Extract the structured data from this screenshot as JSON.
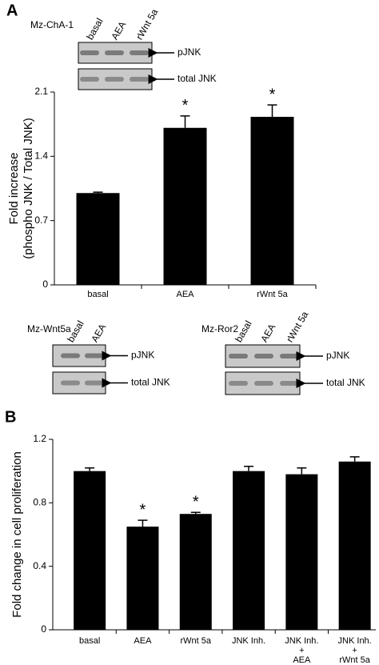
{
  "panels": [
    "A",
    "B"
  ],
  "blots": [
    {
      "cell_line": "Mz-ChA-1",
      "lanes": [
        "basal",
        "AEA",
        "rWnt 5a"
      ],
      "bands": [
        "pJNK",
        "total JNK"
      ]
    },
    {
      "cell_line": "Mz-Wnt5a",
      "lanes": [
        "basal",
        "AEA"
      ],
      "bands": [
        "pJNK",
        "total JNK"
      ]
    },
    {
      "cell_line": "Mz-Ror2",
      "lanes": [
        "basal",
        "AEA",
        "rWnt 5a"
      ],
      "bands": [
        "pJNK",
        "total JNK"
      ]
    }
  ],
  "chart_data": [
    {
      "type": "bar",
      "y_label": [
        "Fold increase",
        "(phospho JNK / Total JNK)"
      ],
      "categories": [
        "basal",
        "AEA",
        "rWnt 5a"
      ],
      "values": [
        1.0,
        1.71,
        1.83
      ],
      "errors": [
        0.01,
        0.13,
        0.13
      ],
      "annotations": [
        null,
        "*",
        "*"
      ],
      "color": "#000000",
      "ylim": [
        0,
        2.1
      ],
      "yticks": [
        0,
        0.7,
        1.4,
        2.1
      ]
    },
    {
      "type": "bar",
      "y_label": "Fold change in cell proliferation",
      "categories": [
        "basal",
        "AEA",
        "rWnt 5a",
        "JNK Inh.",
        "JNK Inh.\n+\nAEA",
        "JNK Inh.\n+\nrWnt 5a"
      ],
      "values": [
        1.0,
        0.65,
        0.73,
        1.0,
        0.98,
        1.06
      ],
      "errors": [
        0.02,
        0.04,
        0.01,
        0.03,
        0.04,
        0.03
      ],
      "annotations": [
        null,
        "*",
        "*",
        null,
        null,
        null
      ],
      "color": "#000000",
      "ylim": [
        0,
        1.2
      ],
      "yticks": [
        0,
        0.4,
        0.8,
        1.2
      ]
    }
  ]
}
